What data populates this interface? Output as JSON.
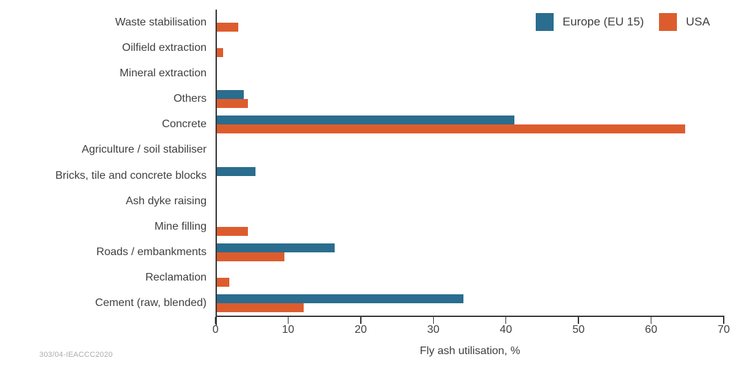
{
  "footnote": "303/04-IEACCC2020",
  "colors": {
    "axis": "#3A3A3A",
    "text": "#3F3F3F",
    "footnote": "#ADADAD",
    "background": "#FFFFFF",
    "europe_blue": "#2A6D8E",
    "usa_orange": "#DD5C2E"
  },
  "chart_data": {
    "type": "bar",
    "orientation": "horizontal",
    "title": "",
    "xlabel": "Fly ash utilisation, %",
    "ylabel": "",
    "xlim": [
      0,
      70
    ],
    "xticks": [
      0,
      10,
      20,
      30,
      40,
      50,
      60,
      70
    ],
    "grid": false,
    "legend_position": "top-right",
    "categories": [
      "Waste stabilisation",
      "Oilfield extraction",
      "Mineral extraction",
      "Others",
      "Concrete",
      "Agriculture / soil stabiliser",
      "Bricks, tile and concrete blocks",
      "Ash dyke raising",
      "Mine filling",
      "Roads / embankments",
      "Reclamation",
      "Cement (raw, blended)"
    ],
    "series": [
      {
        "name": "Europe (EU 15)",
        "color": "#2A6D8E",
        "values": [
          0,
          0,
          0,
          3.7,
          41,
          0,
          5.4,
          0,
          0,
          16.3,
          0,
          34
        ]
      },
      {
        "name": "USA",
        "color": "#DD5C2E",
        "values": [
          3,
          0.9,
          0,
          4.3,
          64.5,
          0,
          0,
          0,
          4.3,
          9.3,
          1.8,
          12
        ]
      }
    ]
  }
}
